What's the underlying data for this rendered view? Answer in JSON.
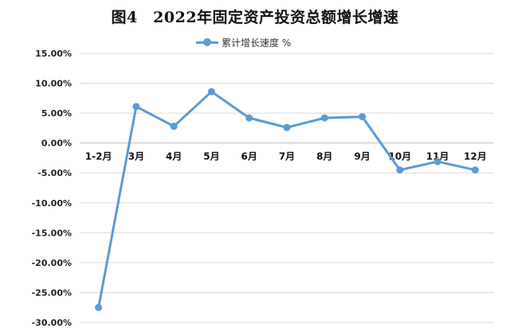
{
  "title": "图4　2022年固定资产投资总额增长增速",
  "chart_data": {
    "type": "line",
    "title": "图4　2022年固定资产投资总额增长增速",
    "categories": [
      "1-2月",
      "3月",
      "4月",
      "5月",
      "6月",
      "7月",
      "8月",
      "9月",
      "10月",
      "11月",
      "12月"
    ],
    "series": [
      {
        "name": "累计增长速度 %",
        "color": "#5b9bd5",
        "values": [
          -27.5,
          6.1,
          2.8,
          8.6,
          4.2,
          2.6,
          4.2,
          4.4,
          -4.5,
          -3.1,
          -4.5
        ]
      }
    ],
    "ylim": [
      -30,
      15
    ],
    "yticks": [
      "15.00%",
      "10.00%",
      "5.00%",
      "0.00%",
      "-5.00%",
      "-10.00%",
      "-15.00%",
      "-20.00%",
      "-25.00%",
      "-30.00%"
    ],
    "grid": true,
    "legend": "top-center"
  }
}
